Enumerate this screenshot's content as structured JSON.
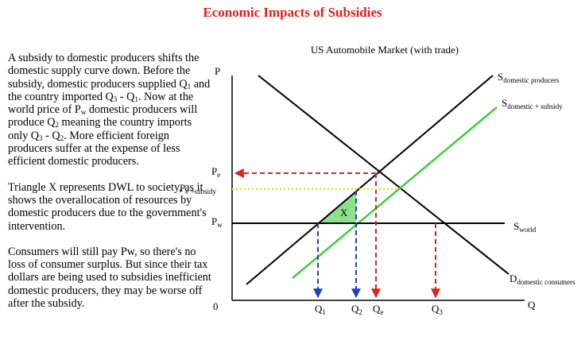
{
  "header": {
    "title": "Economic Impacts of Subsidies"
  },
  "text": {
    "paragraphs": [
      [
        {
          "text": "A subsidy to domestic producers shifts the domestic supply curve down. Before the subsidy, domestic producers supplied Q",
          "sub": "1"
        },
        {
          "text": " and the country imported Q",
          "sub": "3"
        },
        {
          "text": " - Q",
          "sub": "1"
        },
        {
          "text": ". Now at the world price of P",
          "sub": "w"
        },
        {
          "text": " domestic producers will produce Q",
          "sub": "2"
        },
        {
          "text": " meaning the country imports only Q",
          "sub": "3"
        },
        {
          "text": " - Q",
          "sub": "2"
        },
        {
          "text": ". More efficient foreign producers suffer at the expense of less efficient domestic producers."
        }
      ],
      [
        {
          "text": "Triangle X represents DWL to society, as it shows the overallocation of resources by domestic producers due to the government's intervention."
        }
      ],
      [
        {
          "text": "Consumers will still pay Pw, so there's no loss of consumer surplus. But since their tax dollars are being used to subsidies inefficient domestic producers, they may be worse off after the subsidy."
        }
      ]
    ]
  },
  "diagram": {
    "title": "US Automobile Market (with trade)",
    "y_axis": "P",
    "x_axis": "Q",
    "origin": "0",
    "triangle": "X",
    "curves": [
      {
        "main": "S",
        "sub": "domestic producers"
      },
      {
        "main": "S",
        "sub": "domestic + subsidy"
      },
      {
        "main": "S",
        "sub": "world"
      },
      {
        "main": "D",
        "sub": "domestic consumers"
      }
    ],
    "prices": [
      {
        "main": "P",
        "sub": "e"
      },
      {
        "main": "P",
        "sub": "e +subsidy"
      },
      {
        "main": "P",
        "sub": "w"
      }
    ],
    "quantities": [
      {
        "main": "Q",
        "sub": "1"
      },
      {
        "main": "Q",
        "sub": "2"
      },
      {
        "main": "Q",
        "sub": "e"
      },
      {
        "main": "Q",
        "sub": "3"
      }
    ]
  }
}
